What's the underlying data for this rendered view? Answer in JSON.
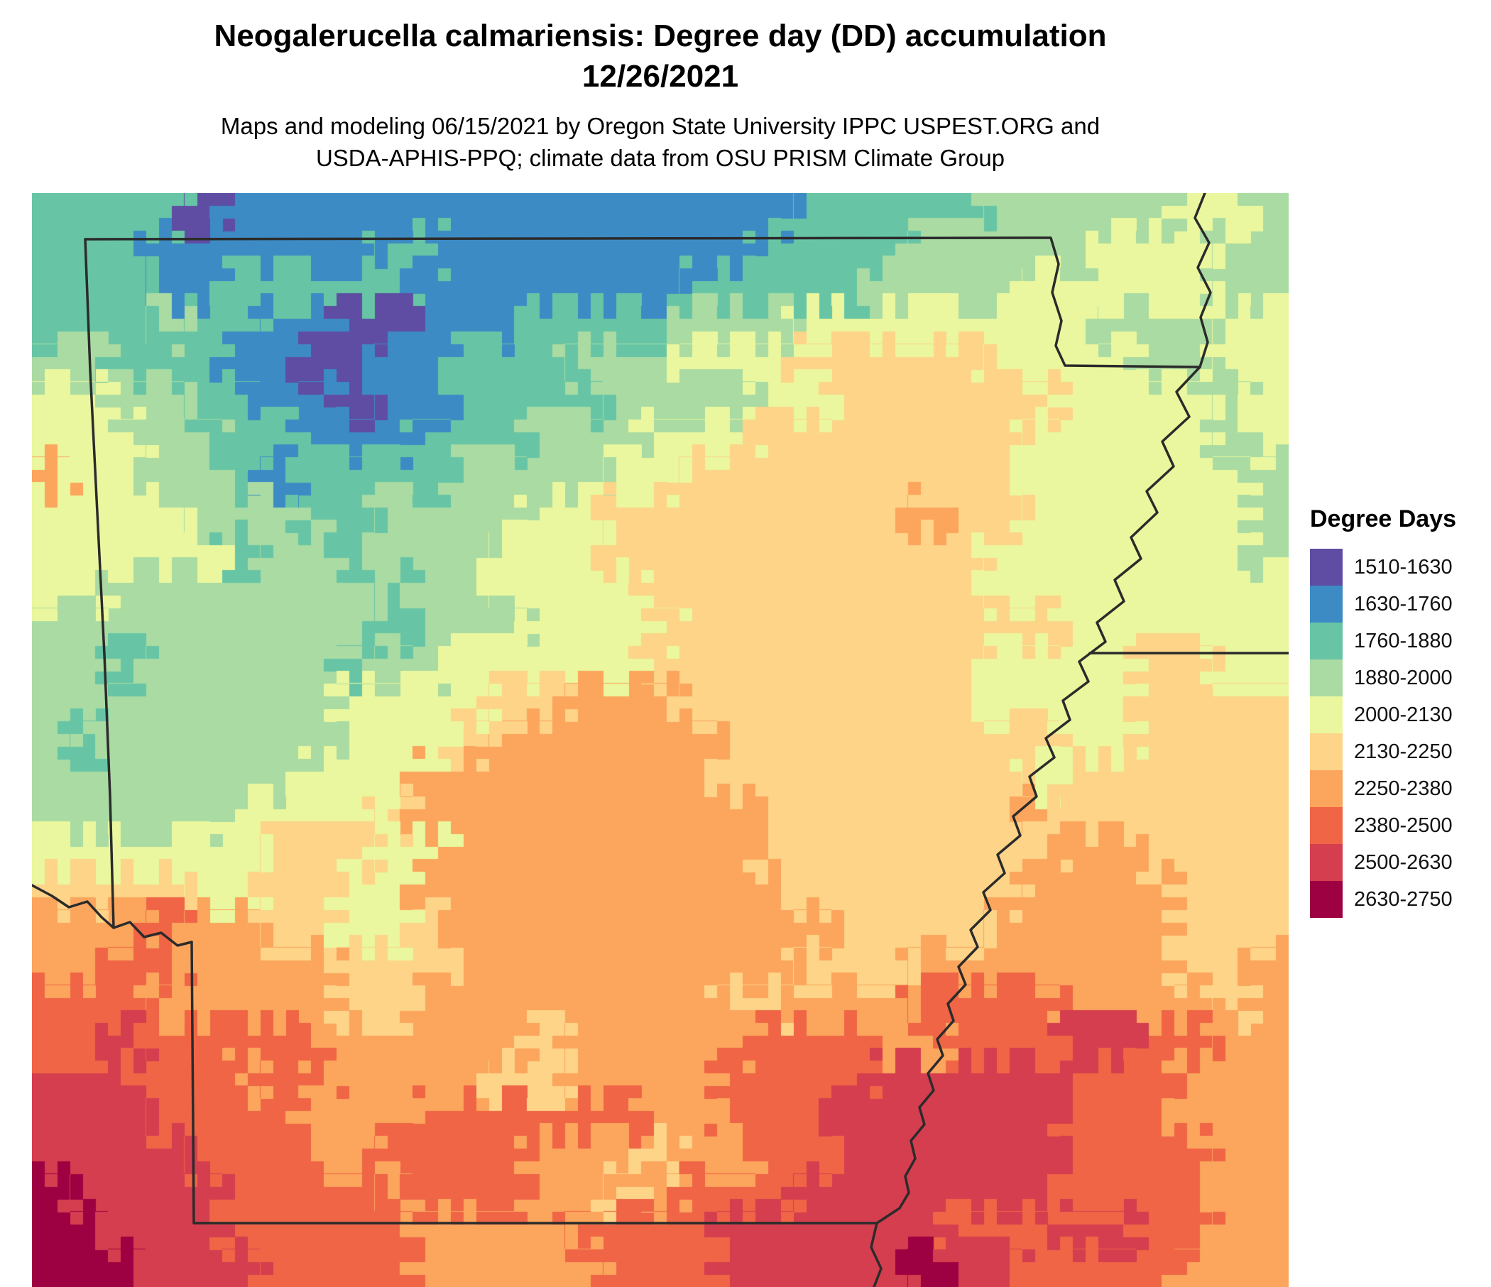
{
  "header": {
    "title_line1": "Neogalerucella calmariensis: Degree day (DD) accumulation",
    "title_line2": "12/26/2021",
    "subtitle_line1": "Maps and modeling 06/15/2021 by Oregon State University IPPC USPEST.ORG and",
    "subtitle_line2": "USDA-APHIS-PPQ; climate data from OSU PRISM Climate Group"
  },
  "legend": {
    "title": "Degree Days",
    "entries": [
      {
        "label": "1510-1630",
        "min": 1510,
        "max": 1630,
        "color": "#5e4da3"
      },
      {
        "label": "1630-1760",
        "min": 1630,
        "max": 1760,
        "color": "#3d8bc4"
      },
      {
        "label": "1760-1880",
        "min": 1760,
        "max": 1880,
        "color": "#67c5a5"
      },
      {
        "label": "1880-2000",
        "min": 1880,
        "max": 2000,
        "color": "#a9dba3"
      },
      {
        "label": "2000-2130",
        "min": 2000,
        "max": 2130,
        "color": "#eaf79e"
      },
      {
        "label": "2130-2250",
        "min": 2130,
        "max": 2250,
        "color": "#fdd488"
      },
      {
        "label": "2250-2380",
        "min": 2250,
        "max": 2380,
        "color": "#fca55d"
      },
      {
        "label": "2380-2500",
        "min": 2380,
        "max": 2500,
        "color": "#ef6545"
      },
      {
        "label": "2500-2630",
        "min": 2500,
        "max": 2630,
        "color": "#d53e4f"
      },
      {
        "label": "2630-2750",
        "min": 2630,
        "max": 2750,
        "color": "#9e0142"
      }
    ]
  },
  "chart_data": {
    "type": "heatmap",
    "title": "Neogalerucella calmariensis: Degree day (DD) accumulation 12/26/2021",
    "value_label": "Degree Days (DD)",
    "region": "Arkansas state outline with surrounding area; Mississippi River on east border",
    "legend_position": "right",
    "bins": [
      "1510-1630",
      "1630-1760",
      "1760-1880",
      "1880-2000",
      "2000-2130",
      "2130-2250",
      "2250-2380",
      "2380-2500",
      "2500-2630",
      "2630-2750"
    ],
    "grid_encoding": "each character 0-9 is an index into legend.entries (0 = 1510-1630 coolest ... 9 = 2630-2750 hottest); rows top-to-bottom, cols left-to-right",
    "grid_cols": 33,
    "grid_rows": 29,
    "grid": [
      "222201111111111111112222233333443",
      "222111111221111111122223333344433",
      "222112222211111112222233334444433",
      "222322110011122223334444444433344",
      "332221100112223334445555544443344",
      "443322110112222333344555555444434",
      "444332211122233344455555554444434",
      "644332122223333445555555554444443",
      "444433322333344555555556554444443",
      "444442332333444555555555544444443",
      "443333333233444455555555544444444",
      "333333333233344445555555555444444",
      "332333332334444455555555544445544",
      "333333334444556665555555544445555",
      "323333334445666666555555555445555",
      "333333344466666666555555554555555",
      "333334444566666666655555556555555",
      "444444555446666666655555555665555",
      "555544554466666666665555556666555",
      "666766554456666666666555566666555",
      "667766665556666666665556666666556",
      "777666665566666666556667777666656",
      "778777766666656666677766777887766",
      "887776776666556666777788888777666",
      "888777766677777766777888888777666",
      "888877766777766656677888888777766",
      "988887777677766567778888888777766",
      "998887777766667777888888777887766",
      "999888777766666777888889887777666"
    ]
  }
}
